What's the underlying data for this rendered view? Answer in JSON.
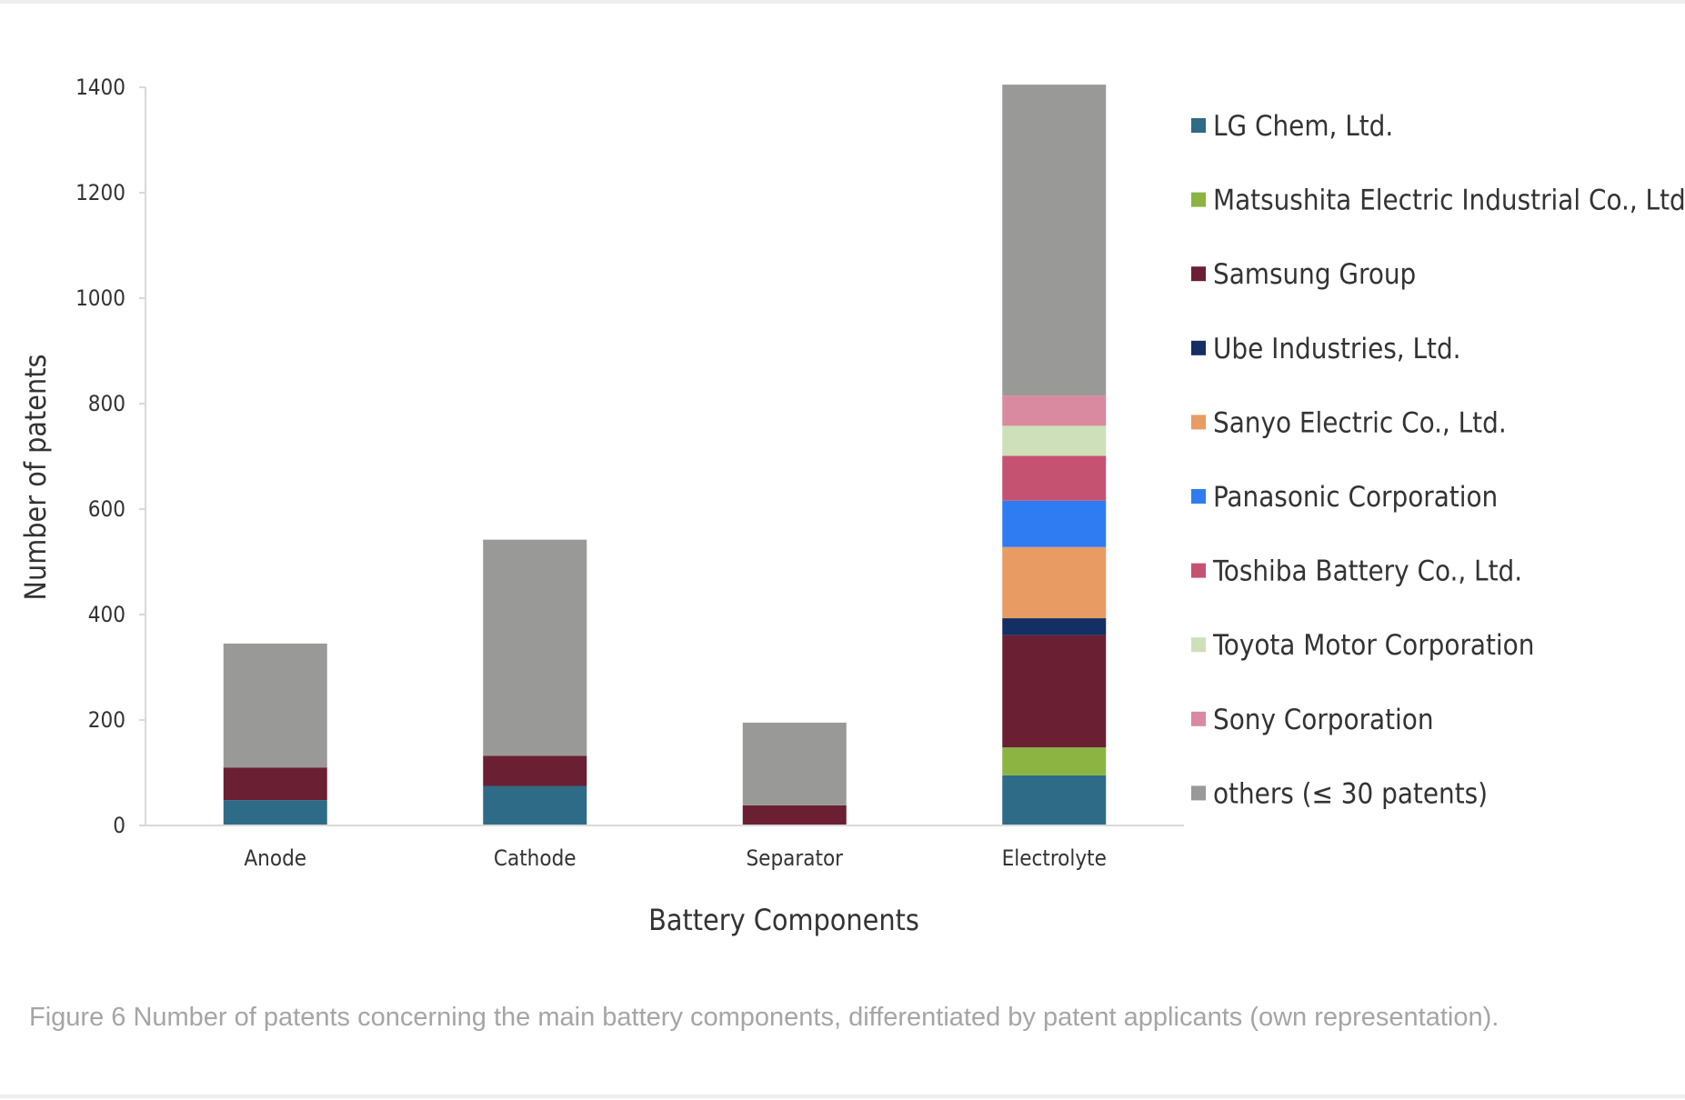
{
  "caption": "Figure 6 Number of patents concerning the main battery components, differentiated by patent applicants (own representation).",
  "chart_data": {
    "type": "bar",
    "stacked": true,
    "categories": [
      "Anode",
      "Cathode",
      "Separator",
      "Electrolyte"
    ],
    "xlabel": "Battery Components",
    "ylabel": "Number of patents",
    "ylim": [
      0,
      1400
    ],
    "yticks": [
      0,
      200,
      400,
      600,
      800,
      1000,
      1200,
      1400
    ],
    "grid": false,
    "legend_position": "right",
    "series": [
      {
        "name": "LG Chem, Ltd.",
        "color": "#2e6b86",
        "values": [
          48,
          75,
          0,
          95
        ]
      },
      {
        "name": "Matsushita Electric Industrial Co., Ltd.",
        "color": "#8cb442",
        "values": [
          0,
          0,
          0,
          53
        ]
      },
      {
        "name": "Samsung Group",
        "color": "#6b1f32",
        "values": [
          62,
          57,
          38,
          213
        ]
      },
      {
        "name": "Ube Industries, Ltd.",
        "color": "#132f63",
        "values": [
          0,
          0,
          0,
          32
        ]
      },
      {
        "name": "Sanyo Electric Co., Ltd.",
        "color": "#e89b62",
        "values": [
          0,
          0,
          0,
          135
        ]
      },
      {
        "name": "Panasonic Corporation",
        "color": "#2f7bf2",
        "values": [
          0,
          0,
          0,
          88
        ]
      },
      {
        "name": "Toshiba Battery Co., Ltd.",
        "color": "#c65272",
        "values": [
          0,
          0,
          0,
          85
        ]
      },
      {
        "name": "Toyota Motor Corporation",
        "color": "#cde0b9",
        "values": [
          0,
          0,
          0,
          57
        ]
      },
      {
        "name": "Sony Corporation",
        "color": "#d989a0",
        "values": [
          0,
          0,
          0,
          57
        ]
      },
      {
        "name": "others (≤ 30 patents)",
        "color": "#999a97",
        "values": [
          235,
          410,
          157,
          590
        ]
      }
    ]
  }
}
